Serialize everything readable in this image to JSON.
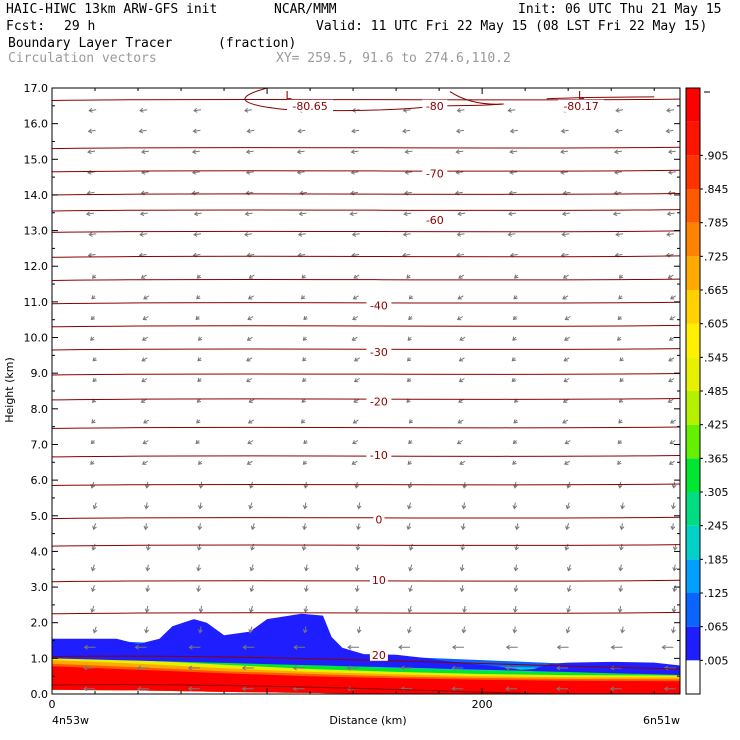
{
  "header": {
    "model": "HAIC-HIWC 13km ARW-GFS init",
    "org": "NCAR/MMM",
    "init": "Init: 06 UTC Thu 21 May 15",
    "fcst_label": "Fcst:",
    "fcst_value": "29 h",
    "valid": "Valid: 11 UTC Fri 22 May 15 (08 LST Fri 22 May 15)",
    "field": "Boundary Layer Tracer",
    "field_units": "(fraction)",
    "vectors": "Circulation vectors",
    "xy": "XY= 259.5, 91.6 to 274.6,110.2"
  },
  "colors": {
    "contour": "#8b0000",
    "vector": "#777777",
    "colorbar": [
      "#ffffff",
      "#1e1eff",
      "#0a64ff",
      "#00a0ff",
      "#00d2c8",
      "#00dc82",
      "#00e632",
      "#64f000",
      "#b4f000",
      "#e6f000",
      "#fff000",
      "#ffd200",
      "#ffaa00",
      "#ff8200",
      "#ff5a00",
      "#ff3200",
      "#ff1400",
      "#ff0000"
    ]
  },
  "chart_data": {
    "type": "cross-section",
    "title": "Boundary Layer Tracer",
    "units": "(fraction)",
    "xlabel": "Distance (km)",
    "ylabel": "Height (km)",
    "xlim": [
      0,
      292
    ],
    "ylim": [
      0,
      17
    ],
    "x_ticks": [
      {
        "value": 0,
        "label": "0"
      },
      {
        "value": 200,
        "label": "200"
      }
    ],
    "x_end_labels": {
      "left": "4n53w",
      "right": "6n51w"
    },
    "y_ticks": [
      "0.0",
      "1.0",
      "2.0",
      "3.0",
      "4.0",
      "5.0",
      "6.0",
      "7.0",
      "8.0",
      "9.0",
      "10.0",
      "11.0",
      "12.0",
      "13.0",
      "14.0",
      "15.0",
      "16.0",
      "17.0"
    ],
    "colorbar_labels": [
      ".005",
      ".065",
      ".125",
      ".185",
      ".245",
      ".305",
      ".365",
      ".425",
      ".485",
      ".545",
      ".605",
      ".665",
      ".725",
      ".785",
      ".845",
      ".905"
    ],
    "temperature_contours": [
      {
        "label": "-80.65",
        "x": 120,
        "y": 16.5
      },
      {
        "label": "-80",
        "x": 178,
        "y": 16.5
      },
      {
        "label": "L",
        "x": 110,
        "y": 16.8
      },
      {
        "label": "L",
        "x": 246,
        "y": 16.8
      },
      {
        "label": "-80.17",
        "x": 246,
        "y": 16.5
      },
      {
        "label": "-70",
        "x": 178,
        "y": 14.6
      },
      {
        "label": "-60",
        "x": 178,
        "y": 13.3
      },
      {
        "label": "-40",
        "x": 152,
        "y": 10.9
      },
      {
        "label": "-30",
        "x": 152,
        "y": 9.6
      },
      {
        "label": "-20",
        "x": 152,
        "y": 8.2
      },
      {
        "label": "-10",
        "x": 152,
        "y": 6.7
      },
      {
        "label": "0",
        "x": 152,
        "y": 4.9
      },
      {
        "label": "10",
        "x": 152,
        "y": 3.2
      },
      {
        "label": "20",
        "x": 152,
        "y": 1.1
      }
    ]
  }
}
